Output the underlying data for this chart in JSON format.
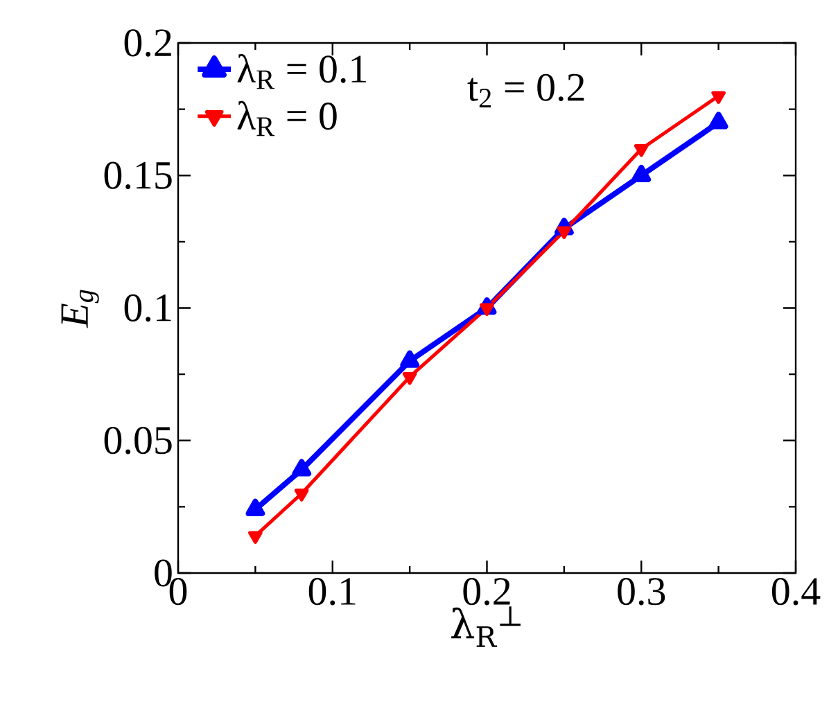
{
  "chart_data": {
    "type": "line",
    "xlabel": "λ$_{R}$$^{⊥}$",
    "ylabel": "E$_{g}$",
    "annotations": [
      "t$_{2}$ = 0.2"
    ],
    "x": [
      0.05,
      0.08,
      0.15,
      0.2,
      0.25,
      0.3,
      0.35
    ],
    "series": [
      {
        "name": "λ$_{R}$ = 0.1",
        "color": "#0000ff",
        "marker": "triangle",
        "values": [
          0.024,
          0.039,
          0.08,
          0.1,
          0.13,
          0.15,
          0.17
        ]
      },
      {
        "name": "λ$_{R}$ = 0",
        "color": "#ff0000",
        "marker": "triangle-down",
        "values": [
          0.014,
          0.03,
          0.074,
          0.1,
          0.129,
          0.16,
          0.18
        ]
      }
    ],
    "xlim": [
      0,
      0.4
    ],
    "xticks": [
      0,
      0.1,
      0.2,
      0.3,
      0.4
    ],
    "ylim": [
      0,
      0.2
    ],
    "yticks": [
      0,
      0.05,
      0.1,
      0.15,
      0.2
    ],
    "legend": "top left",
    "line_style": "solid"
  }
}
